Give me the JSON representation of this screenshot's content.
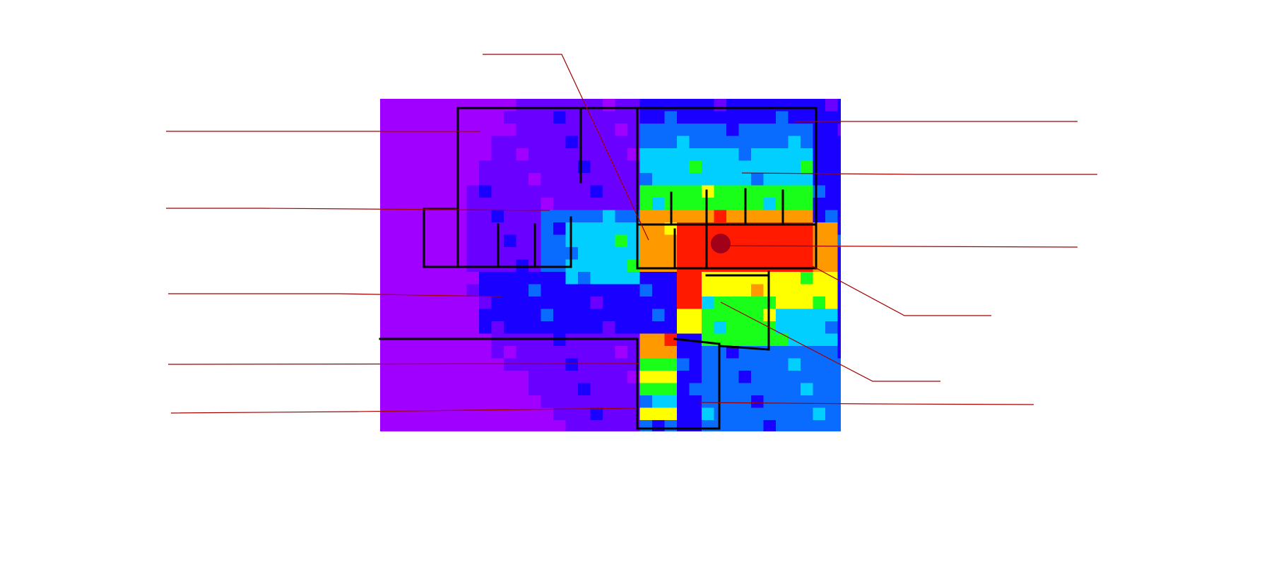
{
  "figure": {
    "type": "wifi-signal-heatmap-floorplan",
    "palette": {
      "weakest": "#a000ff",
      "weak": "#6a00ff",
      "low": "#1a00ff",
      "mid_low": "#0a6cff",
      "mid": "#00cfff",
      "mid_high": "#1aff1a",
      "high": "#ffff00",
      "stronger": "#ff9900",
      "strongest": "#ff1a00",
      "walls": "#000000",
      "leader_lines": "#a00000",
      "access_point": "#a0001a"
    },
    "access_point_icon": "access-point-dot",
    "leader_label_count": 12
  }
}
